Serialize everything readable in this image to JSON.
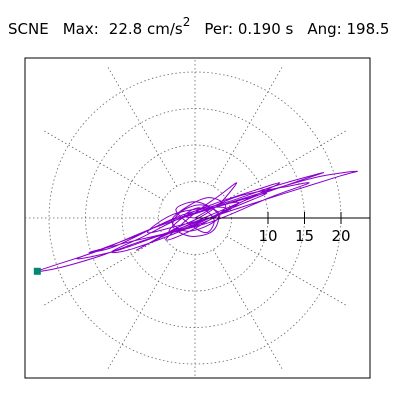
{
  "header": {
    "station": "SCNE",
    "max_label": "Max:",
    "max_value": "22.8",
    "max_unit": "cm/s",
    "max_unit_sup": "2",
    "per_label": "Per:",
    "per_value": "0.190 s",
    "ang_label": "Ang:",
    "ang_value": "198.5"
  },
  "chart_data": {
    "type": "scatter",
    "title": "SCNE",
    "max_amplitude": 22.8,
    "max_amplitude_unit": "cm/s2",
    "period": 0.19,
    "period_unit": "s",
    "angle_deg": 198.5,
    "polar_rings": [
      5,
      10,
      15,
      20
    ],
    "spokes_deg": [
      0,
      30,
      60,
      90,
      120,
      150,
      180,
      210,
      240,
      270,
      300,
      330
    ],
    "radial_ticks": [
      10,
      15,
      20
    ],
    "radial_tick_labels": [
      "10",
      "15",
      "20"
    ],
    "r_max": 25,
    "grid": "dotted",
    "trace_color": "#8800cc",
    "marker_color": "#008870",
    "peak_point": {
      "x": -21.6,
      "y": -7.3
    },
    "trace_path": [
      [
        0.0,
        0.0
      ],
      [
        3.0,
        1.6
      ],
      [
        6.0,
        2.1
      ],
      [
        3.2,
        0.4
      ],
      [
        -2.1,
        -1.0
      ],
      [
        -6.5,
        -2.0
      ],
      [
        -3.2,
        0.4
      ],
      [
        1.6,
        1.4
      ],
      [
        4.3,
        1.2
      ],
      [
        1.0,
        -0.7
      ],
      [
        -3.5,
        -1.9
      ],
      [
        -1.3,
        0.3
      ],
      [
        2.5,
        1.9
      ],
      [
        7.6,
        3.6
      ],
      [
        11.6,
        4.8
      ],
      [
        6.8,
        2.4
      ],
      [
        -0.8,
        -1.3
      ],
      [
        -8.5,
        -4.2
      ],
      [
        -11.4,
        -4.6
      ],
      [
        -7.0,
        -2.5
      ],
      [
        -1.5,
        0.2
      ],
      [
        4.0,
        1.8
      ],
      [
        9.8,
        3.4
      ],
      [
        5.4,
        1.5
      ],
      [
        -1.8,
        -1.5
      ],
      [
        -9.5,
        -3.4
      ],
      [
        -14.5,
        -4.7
      ],
      [
        -11.0,
        -3.9
      ],
      [
        -4.0,
        -0.6
      ],
      [
        1.5,
        1.2
      ],
      [
        6.0,
        3.0
      ],
      [
        12.0,
        4.2
      ],
      [
        15.6,
        4.8
      ],
      [
        10.2,
        2.8
      ],
      [
        2.3,
        -0.5
      ],
      [
        -6.5,
        -2.9
      ],
      [
        -13.0,
        -5.2
      ],
      [
        -18.5,
        -6.8
      ],
      [
        -21.6,
        -7.3
      ],
      [
        -19.0,
        -6.4
      ],
      [
        -13.0,
        -4.4
      ],
      [
        -5.5,
        -1.3
      ],
      [
        1.6,
        1.1
      ],
      [
        9.6,
        3.6
      ],
      [
        16.7,
        5.6
      ],
      [
        22.1,
        6.4
      ],
      [
        20.0,
        5.8
      ],
      [
        13.0,
        3.6
      ],
      [
        5.2,
        1.1
      ],
      [
        -3.2,
        -1.8
      ],
      [
        -10.5,
        -4.4
      ],
      [
        -16.0,
        -5.6
      ],
      [
        -14.0,
        -4.7
      ],
      [
        -8.0,
        -2.4
      ],
      [
        -2.0,
        0.3
      ],
      [
        4.5,
        2.2
      ],
      [
        11.0,
        4.4
      ],
      [
        17.5,
        6.2
      ],
      [
        14.6,
        5.2
      ],
      [
        8.1,
        2.9
      ],
      [
        1.2,
        0.0
      ],
      [
        -4.8,
        -2.7
      ],
      [
        -8.0,
        -4.4
      ],
      [
        -5.5,
        -3.0
      ],
      [
        -2.6,
        -1.4
      ],
      [
        0.5,
        0.0
      ],
      [
        3.2,
        1.8
      ],
      [
        5.7,
        4.8
      ],
      [
        3.5,
        3.2
      ],
      [
        0.4,
        1.0
      ],
      [
        -2.2,
        -1.2
      ],
      [
        -4.0,
        -3.0
      ],
      [
        -1.8,
        -2.3
      ],
      [
        1.4,
        -0.6
      ],
      [
        4.2,
        1.5
      ],
      [
        2.0,
        2.8
      ],
      [
        -1.0,
        1.6
      ],
      [
        -3.2,
        -0.4
      ],
      [
        -1.2,
        -1.8
      ],
      [
        1.8,
        -1.0
      ],
      [
        3.4,
        0.5
      ],
      [
        0.8,
        1.8
      ],
      [
        -2.0,
        0.8
      ],
      [
        -3.0,
        -1.2
      ],
      [
        -0.6,
        -2.5
      ],
      [
        2.4,
        -1.8
      ],
      [
        3.1,
        0.6
      ],
      [
        0.2,
        2.2
      ],
      [
        -2.6,
        1.2
      ],
      [
        -0.8,
        -0.8
      ],
      [
        1.6,
        -2.0
      ],
      [
        2.6,
        -0.2
      ],
      [
        0.6,
        1.4
      ],
      [
        -1.5,
        0.3
      ],
      [
        0.0,
        0.0
      ]
    ]
  }
}
